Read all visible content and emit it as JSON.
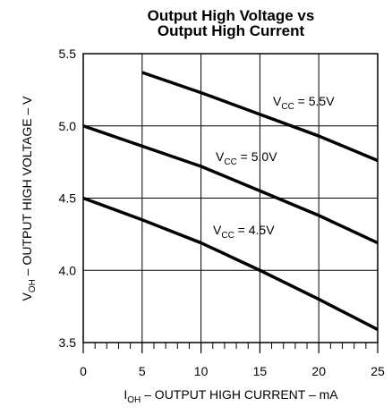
{
  "chart_data": {
    "type": "line",
    "title": [
      "Output High Voltage vs",
      "Output High Current"
    ],
    "xlabel": {
      "main": "I",
      "sub": "OH",
      "rest": " – OUTPUT HIGH CURRENT – mA"
    },
    "ylabel": {
      "main": "V",
      "sub": "OH",
      "rest": " – OUTPUT HIGH VOLTAGE – V"
    },
    "x": [
      0,
      5,
      10,
      15,
      20,
      25
    ],
    "series": [
      {
        "name_main": "V",
        "name_sub": "CC",
        "name_rest": " = 5.5V",
        "color": "#000000",
        "values": [
          null,
          5.37,
          5.23,
          5.08,
          4.93,
          4.76
        ]
      },
      {
        "name_main": "V",
        "name_sub": "CC",
        "name_rest": " = 5.0V",
        "color": "#000000",
        "values": [
          5.0,
          4.86,
          4.72,
          4.55,
          4.38,
          4.19
        ]
      },
      {
        "name_main": "V",
        "name_sub": "CC",
        "name_rest": " = 4.5V",
        "color": "#000000",
        "values": [
          4.5,
          4.35,
          4.19,
          4.0,
          3.8,
          3.59
        ]
      }
    ],
    "xlim": [
      0,
      25
    ],
    "xticks": [
      0,
      5,
      10,
      15,
      20,
      25
    ],
    "xminorticks": [
      1,
      2,
      3,
      4,
      6,
      7,
      8,
      9,
      11,
      12,
      13,
      14,
      16,
      17,
      18,
      19,
      21,
      22,
      23,
      24
    ],
    "ylim": [
      3.5,
      5.5
    ],
    "yticks": [
      3.5,
      {
        "value": 4,
        "label": "4.0"
      },
      4.5,
      {
        "value": 5,
        "label": "5.0"
      },
      5.5
    ],
    "grid": true
  }
}
